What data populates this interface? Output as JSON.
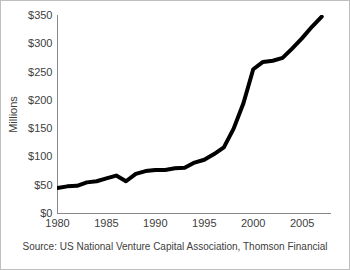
{
  "chart_data": {
    "type": "line",
    "y_label": "Millions",
    "caption": "Source: US National Venture Capital Association, Thomson Financial",
    "x": [
      1980,
      1981,
      1982,
      1983,
      1984,
      1985,
      1986,
      1987,
      1988,
      1989,
      1990,
      1991,
      1992,
      1993,
      1994,
      1995,
      1996,
      1997,
      1998,
      1999,
      2000,
      2001,
      2002,
      2003,
      2004,
      2005,
      2006,
      2007
    ],
    "values": [
      45,
      48,
      49,
      55,
      57,
      62,
      67,
      57,
      70,
      75,
      77,
      77,
      80,
      81,
      90,
      95,
      105,
      117,
      150,
      195,
      255,
      268,
      270,
      275,
      292,
      310,
      330,
      348
    ],
    "color": "#000000",
    "xlim": [
      1980,
      2008
    ],
    "xticks": [
      1980,
      1985,
      1990,
      1995,
      2000,
      2005
    ],
    "ylim": [
      0,
      350
    ],
    "yticks": [
      {
        "value": 0,
        "label": "$0"
      },
      {
        "value": 50,
        "label": "$50"
      },
      {
        "value": 100,
        "label": "$100"
      },
      {
        "value": 150,
        "label": "$150"
      },
      {
        "value": 200,
        "label": "$200"
      },
      {
        "value": 250,
        "label": "$250"
      },
      {
        "value": 300,
        "label": "$300"
      },
      {
        "value": 350,
        "label": "$350"
      }
    ],
    "grid": false
  }
}
